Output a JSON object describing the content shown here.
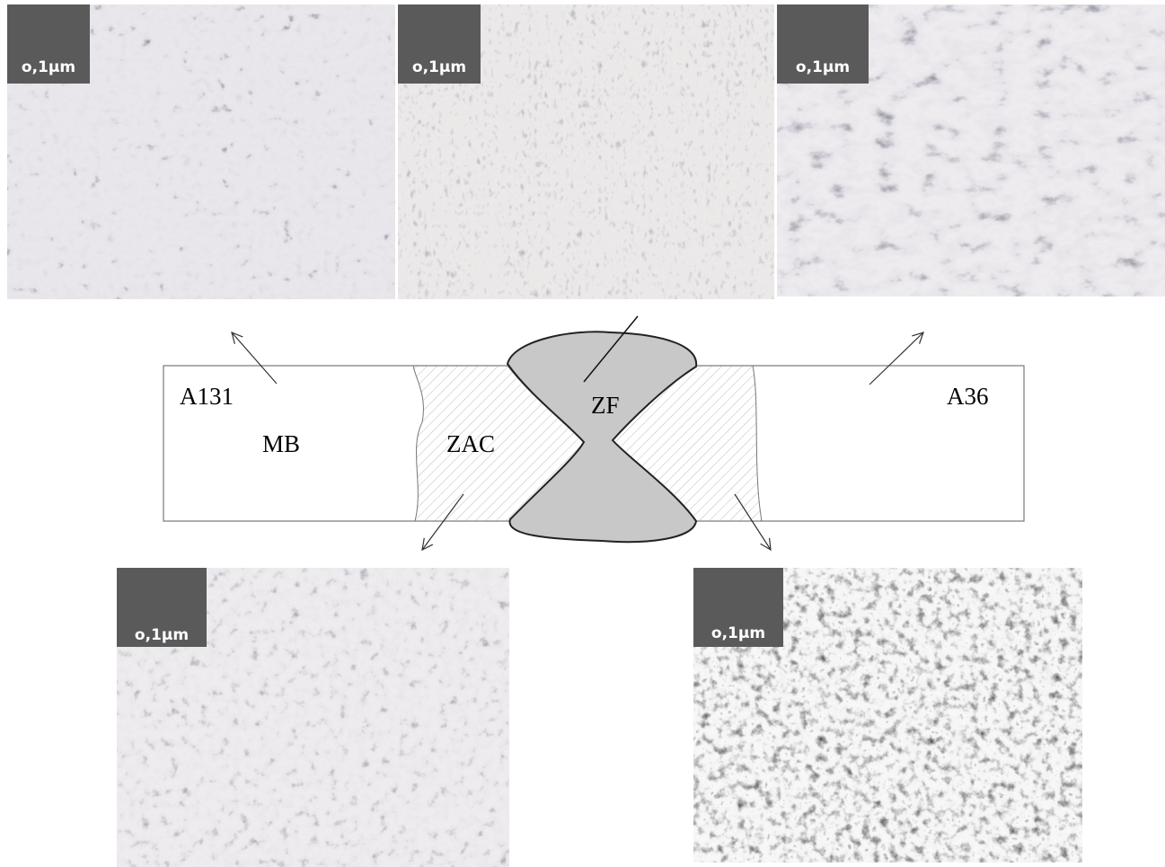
{
  "micrographs": [
    {
      "scale": "o,1μm"
    },
    {
      "scale": "o,1μm"
    },
    {
      "scale": "o,1μm"
    },
    {
      "scale": "o,1μm"
    },
    {
      "scale": "o,1μm"
    }
  ],
  "labels": {
    "left_material": "A131",
    "base_metal": "MB",
    "haz": "ZAC",
    "fusion_zone": "ZF",
    "right_material": "A36"
  }
}
